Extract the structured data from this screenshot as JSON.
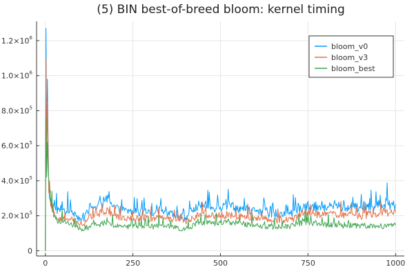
{
  "chart_data": {
    "type": "line",
    "title": "(5) BIN best-of-breed bloom: kernel timing",
    "xlabel": "",
    "ylabel": "",
    "xlim": [
      -25,
      1025
    ],
    "ylim": [
      -30000,
      1310000
    ],
    "grid": true,
    "legend_position": "top-right",
    "x_ticks": [
      {
        "value": 0,
        "label": "0"
      },
      {
        "value": 250,
        "label": "250"
      },
      {
        "value": 500,
        "label": "500"
      },
      {
        "value": 750,
        "label": "750"
      },
      {
        "value": 1000,
        "label": "1000"
      }
    ],
    "y_ticks": [
      {
        "value": 0,
        "mantissa": "0",
        "exponent": ""
      },
      {
        "value": 200000,
        "mantissa": "2.0×10",
        "exponent": "5"
      },
      {
        "value": 400000,
        "mantissa": "4.0×10",
        "exponent": "5"
      },
      {
        "value": 600000,
        "mantissa": "6.0×10",
        "exponent": "5"
      },
      {
        "value": 800000,
        "mantissa": "8.0×10",
        "exponent": "5"
      },
      {
        "value": 1000000,
        "mantissa": "1.0×10",
        "exponent": "6"
      },
      {
        "value": 1200000,
        "mantissa": "1.2×10",
        "exponent": "6"
      }
    ],
    "series": [
      {
        "name": "bloom_v0",
        "color": "#009af9",
        "x": [
          0,
          2,
          4,
          6,
          8,
          10,
          15,
          20,
          30,
          40,
          50,
          60,
          70,
          80,
          90,
          100,
          110,
          120,
          130,
          140,
          150,
          160,
          170,
          180,
          190,
          200,
          220,
          240,
          260,
          280,
          300,
          320,
          340,
          360,
          380,
          400,
          420,
          440,
          460,
          480,
          500,
          520,
          540,
          560,
          580,
          600,
          620,
          640,
          660,
          680,
          700,
          720,
          740,
          760,
          780,
          800,
          820,
          840,
          860,
          880,
          900,
          920,
          940,
          960,
          980,
          1000
        ],
        "y": [
          0,
          1270000,
          520000,
          980000,
          600000,
          350000,
          280000,
          250000,
          230000,
          240000,
          235000,
          225000,
          230000,
          215000,
          200000,
          180000,
          170000,
          230000,
          250000,
          245000,
          260000,
          270000,
          280000,
          300000,
          260000,
          240000,
          230000,
          225000,
          220000,
          225000,
          210000,
          240000,
          230000,
          220000,
          200000,
          190000,
          230000,
          260000,
          255000,
          245000,
          250000,
          260000,
          245000,
          240000,
          235000,
          225000,
          215000,
          210000,
          200000,
          205000,
          210000,
          230000,
          260000,
          255000,
          250000,
          245000,
          255000,
          250000,
          245000,
          250000,
          245000,
          250000,
          255000,
          265000,
          260000,
          265000
        ]
      },
      {
        "name": "bloom_v3",
        "color": "#e26f46",
        "x": [
          0,
          2,
          4,
          6,
          8,
          10,
          15,
          20,
          30,
          40,
          50,
          60,
          70,
          80,
          90,
          100,
          110,
          120,
          130,
          140,
          150,
          160,
          170,
          180,
          190,
          200,
          220,
          240,
          260,
          280,
          300,
          320,
          340,
          360,
          380,
          400,
          420,
          440,
          460,
          480,
          500,
          520,
          540,
          560,
          580,
          600,
          620,
          640,
          660,
          680,
          700,
          720,
          740,
          760,
          780,
          800,
          820,
          840,
          860,
          880,
          900,
          920,
          940,
          960,
          980,
          1000
        ],
        "y": [
          0,
          1100000,
          500000,
          850000,
          560000,
          330000,
          260000,
          220000,
          195000,
          190000,
          185000,
          180000,
          182000,
          175000,
          165000,
          155000,
          150000,
          180000,
          195000,
          200000,
          205000,
          215000,
          220000,
          230000,
          210000,
          200000,
          192000,
          188000,
          185000,
          188000,
          180000,
          195000,
          190000,
          182000,
          172000,
          168000,
          188000,
          205000,
          200000,
          198000,
          200000,
          205000,
          198000,
          195000,
          192000,
          188000,
          182000,
          178000,
          172000,
          175000,
          180000,
          192000,
          215000,
          210000,
          205000,
          200000,
          210000,
          205000,
          200000,
          205000,
          200000,
          205000,
          210000,
          215000,
          212000,
          218000
        ]
      },
      {
        "name": "bloom_best",
        "color": "#3da44d",
        "x": [
          0,
          2,
          4,
          6,
          8,
          10,
          15,
          20,
          30,
          40,
          50,
          60,
          70,
          80,
          90,
          100,
          110,
          120,
          130,
          140,
          150,
          160,
          170,
          180,
          190,
          200,
          220,
          240,
          260,
          280,
          300,
          320,
          340,
          360,
          380,
          400,
          420,
          440,
          460,
          480,
          500,
          520,
          540,
          560,
          580,
          600,
          620,
          640,
          660,
          680,
          700,
          720,
          740,
          760,
          780,
          800,
          820,
          840,
          860,
          880,
          900,
          920,
          940,
          960,
          980,
          1000
        ],
        "y": [
          0,
          760000,
          420000,
          620000,
          480000,
          400000,
          300000,
          230000,
          180000,
          170000,
          160000,
          155000,
          150000,
          145000,
          135000,
          125000,
          115000,
          130000,
          140000,
          145000,
          150000,
          155000,
          160000,
          165000,
          150000,
          145000,
          140000,
          138000,
          135000,
          138000,
          130000,
          145000,
          140000,
          135000,
          128000,
          125000,
          140000,
          165000,
          160000,
          155000,
          160000,
          165000,
          158000,
          155000,
          150000,
          148000,
          140000,
          138000,
          135000,
          138000,
          140000,
          150000,
          165000,
          160000,
          155000,
          150000,
          148000,
          145000,
          142000,
          145000,
          140000,
          142000,
          138000,
          135000,
          140000,
          145000
        ]
      }
    ]
  }
}
